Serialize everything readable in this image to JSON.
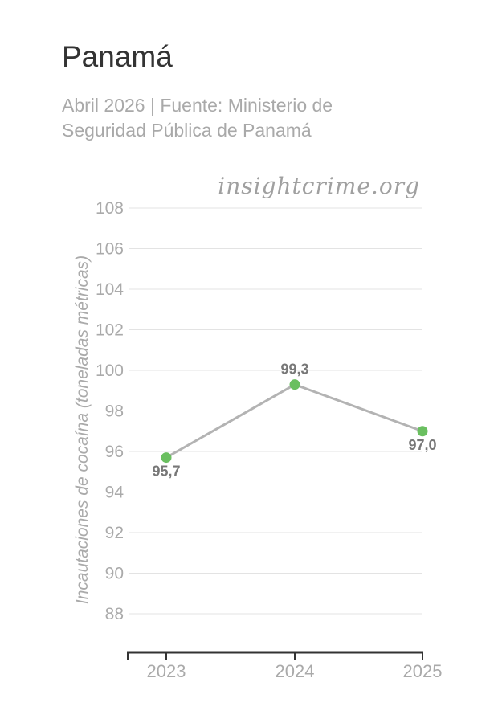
{
  "header": {
    "title": "Panamá",
    "subtitle": "Abril 2026 | Fuente: Ministerio de Seguridad Pública de Panamá"
  },
  "watermark": "insightcrime.org",
  "colors": {
    "line": "#b3b3b3",
    "marker": "#6abf60",
    "grid": "#e3e3e3",
    "tick_text": "#aaaaaa",
    "data_label": "#777777",
    "axis": "#333333"
  },
  "chart_data": {
    "type": "line",
    "title": "Panamá",
    "subtitle": "Abril 2026 | Fuente: Ministerio de Seguridad Pública de Panamá",
    "xlabel": "",
    "ylabel": "Incautaciones de cocaína (toneladas métricas)",
    "categories": [
      "2023",
      "2024",
      "2025"
    ],
    "values": [
      95.7,
      99.3,
      97.0
    ],
    "value_labels": [
      "95,7",
      "99,3",
      "97,0"
    ],
    "yticks": [
      88,
      90,
      92,
      94,
      96,
      98,
      100,
      102,
      104,
      106,
      108
    ],
    "ylim": [
      86,
      108
    ],
    "grid": true
  }
}
